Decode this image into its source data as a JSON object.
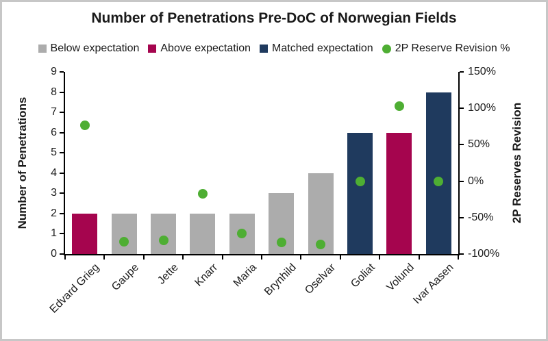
{
  "title": "Number of Penetrations Pre-DoC of Norwegian Fields",
  "legend": [
    {
      "label": "Below expectation",
      "shape": "square",
      "color": "#ACACAC"
    },
    {
      "label": "Above expectation",
      "shape": "square",
      "color": "#A5054E"
    },
    {
      "label": "Matched expectation",
      "shape": "square",
      "color": "#1F3A5E"
    },
    {
      "label": "2P Reserve Revision %",
      "shape": "circle",
      "color": "#4EAE33"
    }
  ],
  "chart_data": {
    "type": "bar",
    "subtype": "combo-bar-scatter-dual-axis",
    "title": "Number of Penetrations Pre-DoC of Norwegian Fields",
    "categories": [
      "Edvard Grieg",
      "Gaupe",
      "Jette",
      "Knarr",
      "Maria",
      "Brynhild",
      "Oselvar",
      "Goliat",
      "Volund",
      "Ivar Aasen"
    ],
    "series": [
      {
        "name": "Number of Penetrations",
        "type": "bar",
        "axis": "left",
        "values": [
          2,
          2,
          2,
          2,
          2,
          3,
          4,
          6,
          6,
          8
        ],
        "category_status": [
          "above",
          "below",
          "below",
          "below",
          "below",
          "below",
          "below",
          "matched",
          "above",
          "matched"
        ]
      },
      {
        "name": "2P Reserve Revision %",
        "type": "scatter",
        "axis": "right",
        "values_percent": [
          77,
          -83,
          -81,
          -17,
          -72,
          -84,
          -87,
          0,
          103,
          0
        ]
      }
    ],
    "status_colors": {
      "below": "#ACACAC",
      "above": "#A5054E",
      "matched": "#1F3A5E"
    },
    "scatter_color": "#4EAE33",
    "left_axis": {
      "label": "Number of Penetrations",
      "min": 0,
      "max": 9,
      "tick_step": 1,
      "ticks": [
        0,
        1,
        2,
        3,
        4,
        5,
        6,
        7,
        8,
        9
      ]
    },
    "right_axis": {
      "label": "2P Reserves Revision",
      "min": -100,
      "max": 150,
      "tick_step": 50,
      "tick_labels": [
        "-100%",
        "-50%",
        "0%",
        "50%",
        "100%",
        "150%"
      ]
    },
    "grid": false,
    "legend_position": "top"
  },
  "colors": {
    "frame_border": "#C7C7C7",
    "background": "#FFFFFF",
    "axis_line": "#000000",
    "text": "#1A1A1A"
  }
}
